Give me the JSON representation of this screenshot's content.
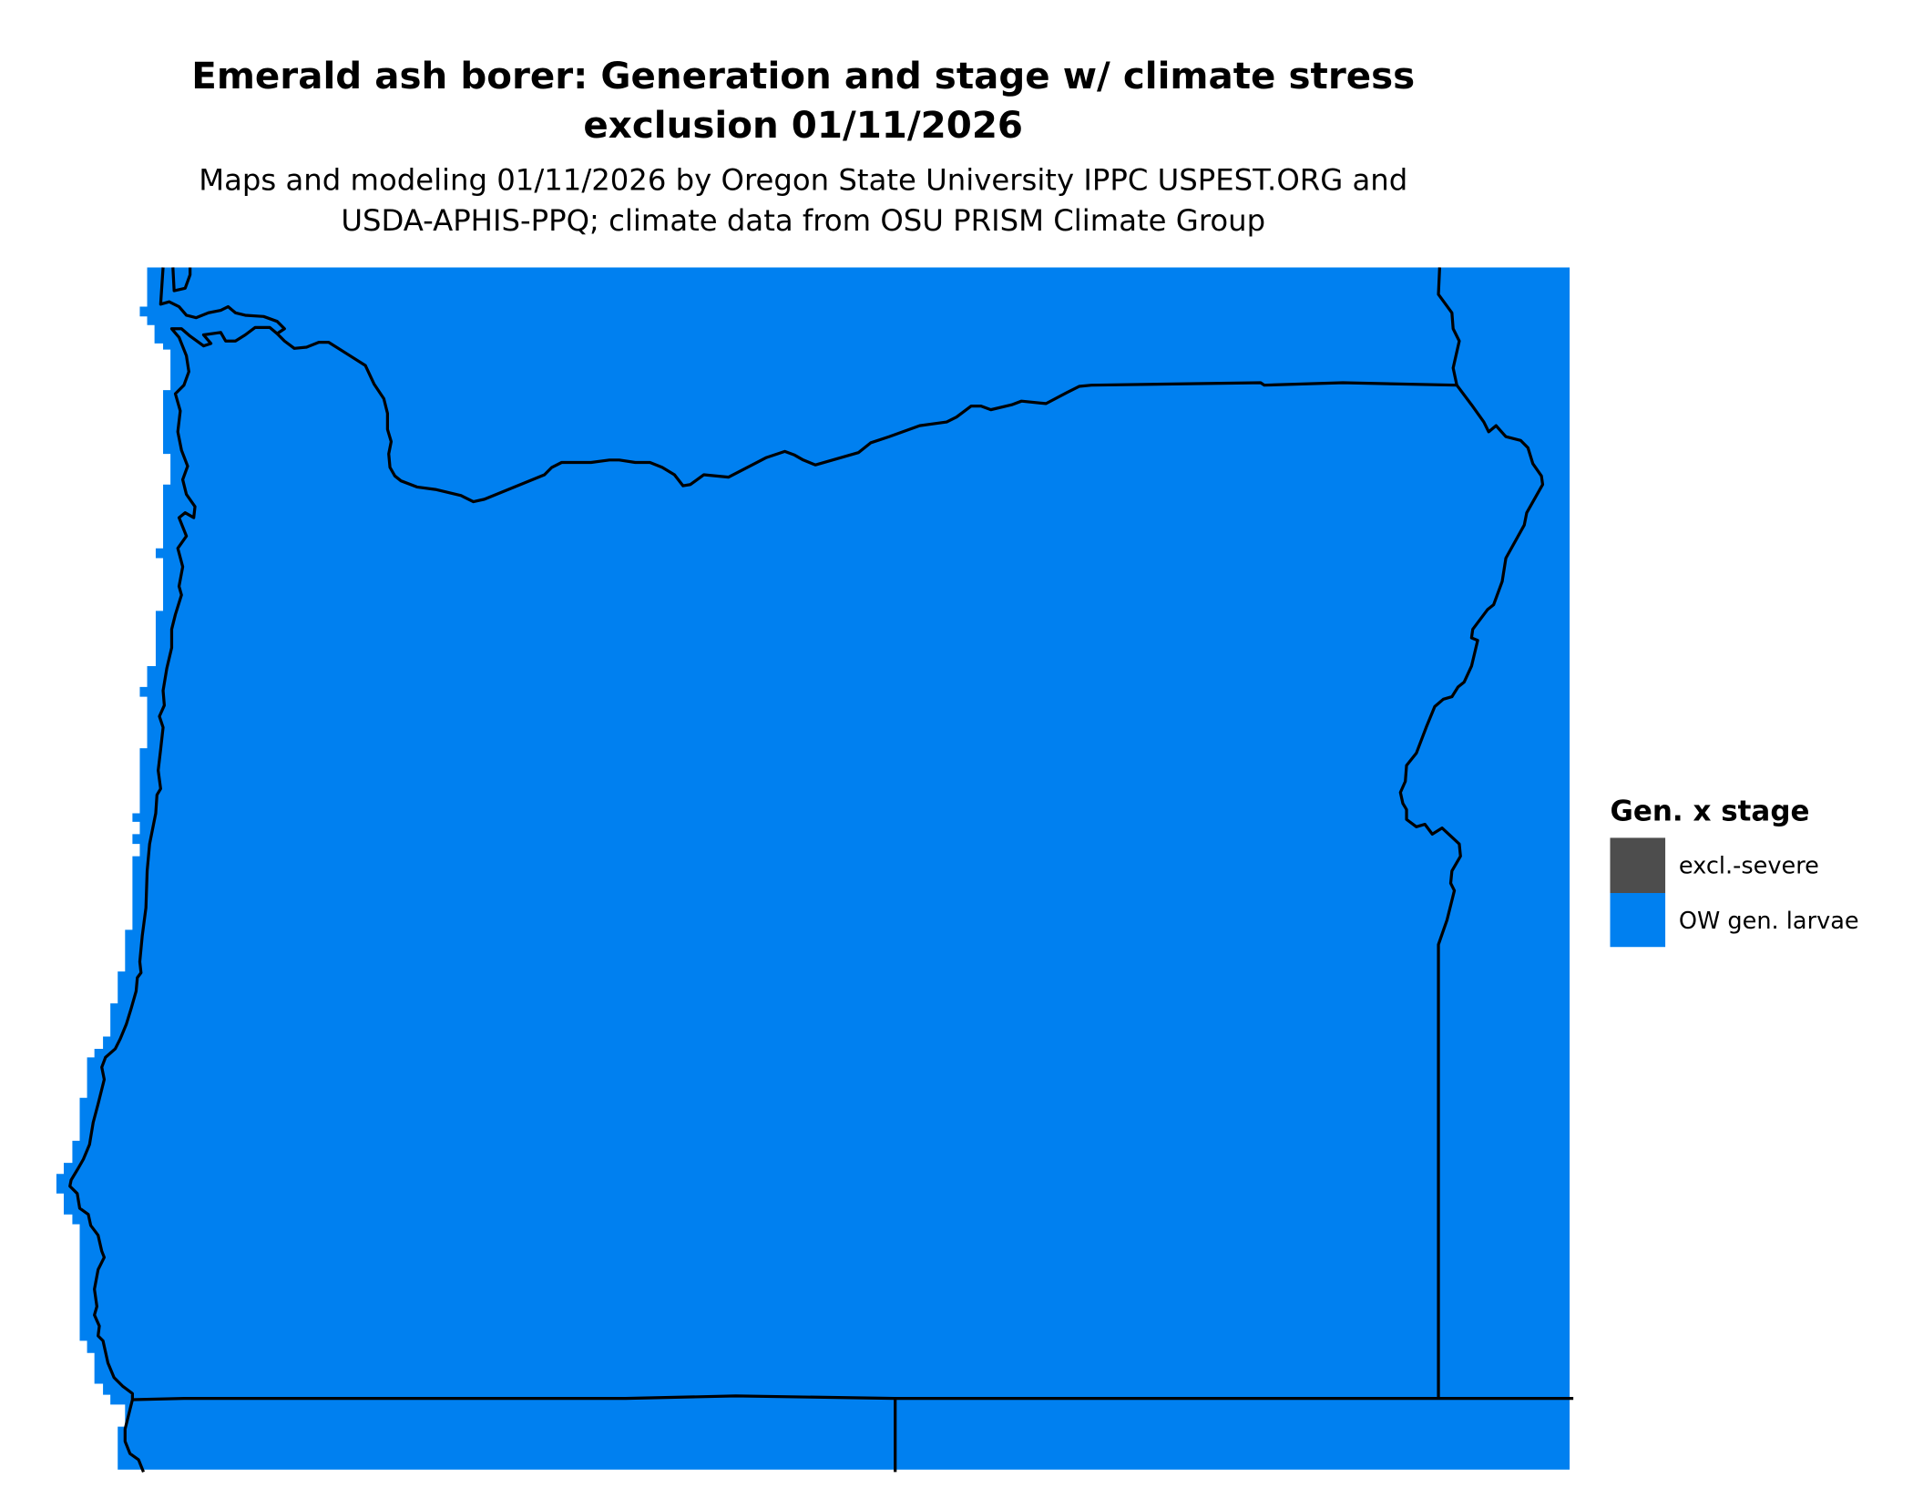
{
  "title_lines": [
    "Emerald ash borer: Generation and stage w/ climate stress",
    "exclusion 01/11/2026"
  ],
  "subtitle_lines": [
    "Maps and modeling 01/11/2026 by Oregon State University IPPC USPEST.ORG and",
    "USDA-APHIS-PPQ; climate data from OSU PRISM Climate Group"
  ],
  "legend": {
    "title": "Gen. x stage",
    "items": [
      {
        "label": "excl.-severe",
        "color": "#4d4d4d"
      },
      {
        "label": "OW gen. larvae",
        "color": "#0080f0"
      }
    ]
  },
  "map": {
    "fill_color": "#0080f0",
    "border_color": "#000000"
  }
}
